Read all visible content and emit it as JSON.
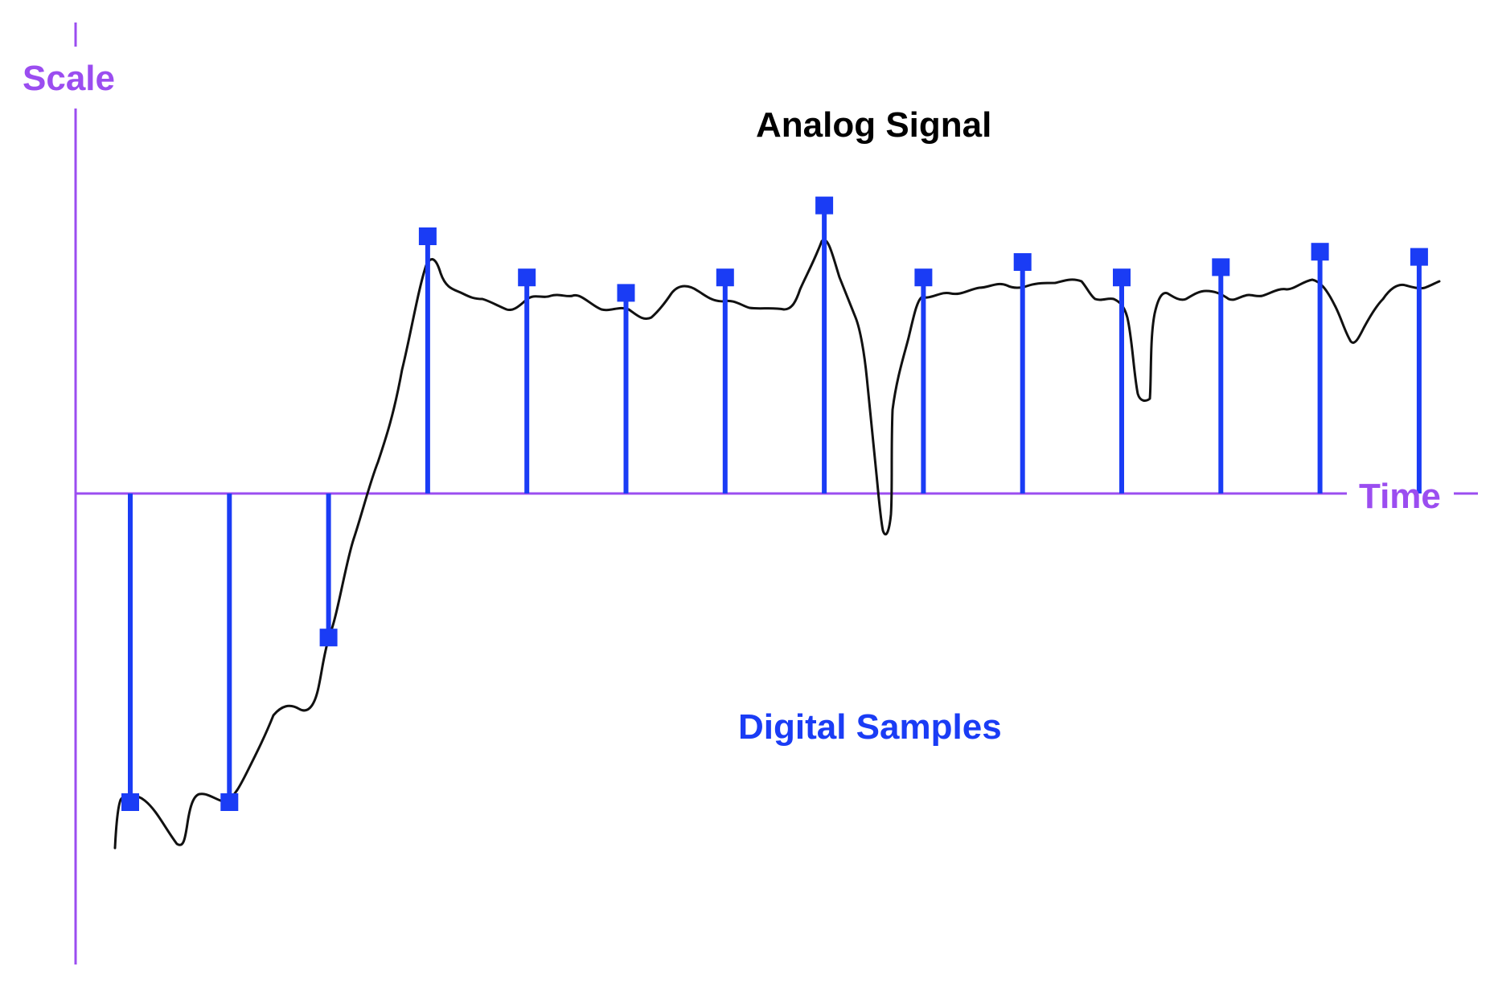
{
  "labels": {
    "scale": "Scale",
    "time": "Time",
    "analog": "Analog Signal",
    "digital": "Digital Samples"
  },
  "colors": {
    "axis": "#9B4DF0",
    "samples": "#1A3CF5",
    "signal": "#111111",
    "analog_text": "#000000"
  },
  "samples": {
    "count": 14,
    "values": [
      -0.6,
      -0.6,
      -0.28,
      0.5,
      0.42,
      0.39,
      0.42,
      0.56,
      0.42,
      0.45,
      0.42,
      0.44,
      0.47,
      0.46
    ]
  }
}
